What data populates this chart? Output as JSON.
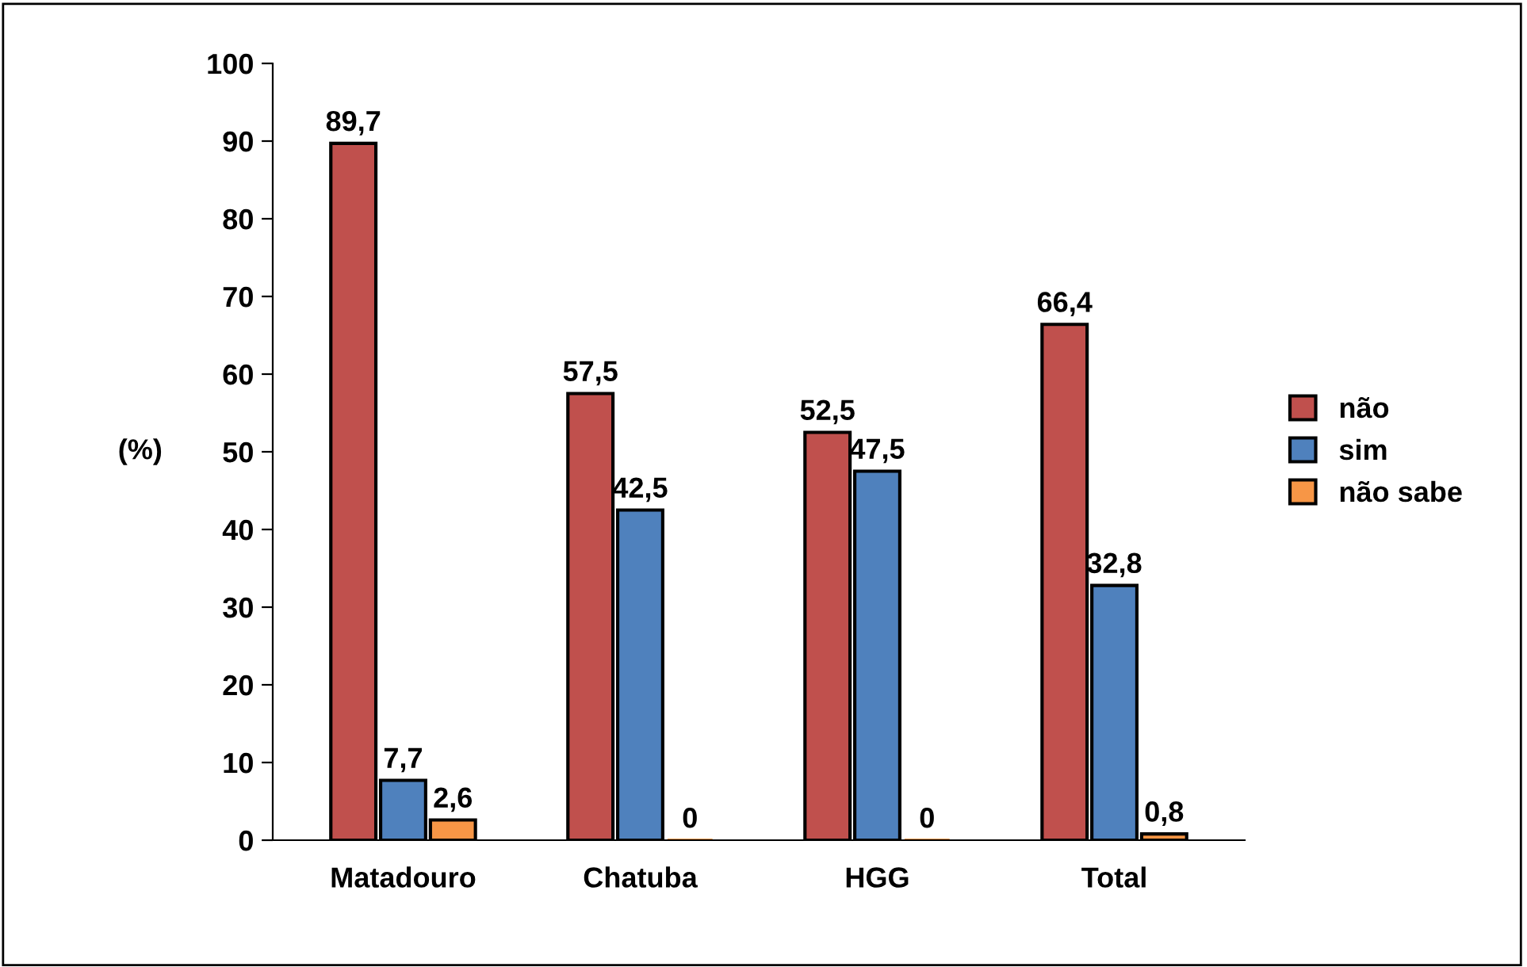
{
  "chart_data": {
    "type": "bar",
    "ylabel": "(%)",
    "categories": [
      "Matadouro",
      "Chatuba",
      "HGG",
      "Total"
    ],
    "series": [
      {
        "name": "não",
        "color": "#c0504d",
        "values": [
          89.7,
          57.5,
          52.5,
          66.4
        ],
        "value_labels": [
          "89,7",
          "57,5",
          "52,5",
          "66,4"
        ]
      },
      {
        "name": "sim",
        "color": "#4f81bd",
        "values": [
          7.7,
          42.5,
          47.5,
          32.8
        ],
        "value_labels": [
          "7,7",
          "42,5",
          "47,5",
          "32,8"
        ]
      },
      {
        "name": "não sabe",
        "color": "#f79646",
        "values": [
          2.6,
          0,
          0,
          0.8
        ],
        "value_labels": [
          "2,6",
          "0",
          "0",
          "0,8"
        ]
      }
    ],
    "ylim": [
      0,
      100
    ],
    "yticks": [
      0,
      10,
      20,
      30,
      40,
      50,
      60,
      70,
      80,
      90,
      100
    ],
    "grid": false,
    "legend": "right"
  }
}
